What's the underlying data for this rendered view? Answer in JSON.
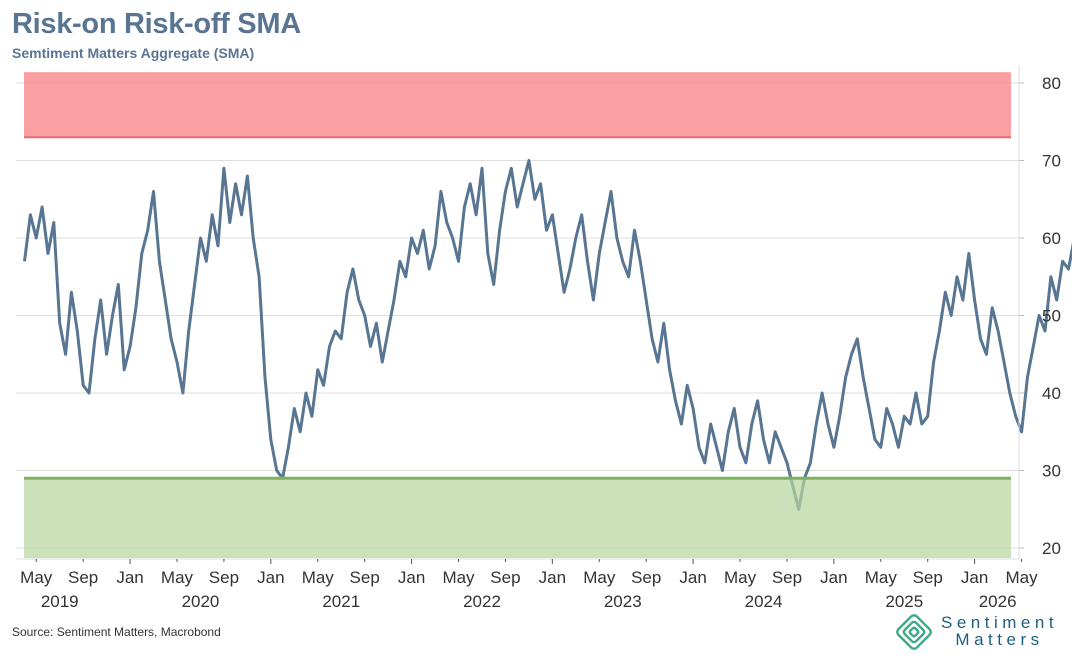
{
  "header": {
    "title": "Risk-on Risk-off SMA",
    "subtitle": "Semtiment Matters Aggregate (SMA)"
  },
  "footer": {
    "source": "Source: Sentiment Matters, Macrobond",
    "logo_line1": "Sentiment",
    "logo_line2": "Matters",
    "logo_icon": "nested-diamond-icon"
  },
  "colors": {
    "line": "#587592",
    "risk_on_zone": "#f98b8e",
    "risk_on_line": "#ee6a6e",
    "risk_off_zone": "#b5d6a0",
    "risk_off_line": "#7fb25e",
    "grid": "#dddddd",
    "logo": "#3aa882"
  },
  "chart_data": {
    "type": "line",
    "title": "Risk-on Risk-off SMA",
    "subtitle": "Semtiment Matters Aggregate (SMA)",
    "xlabel": "",
    "ylabel": "",
    "ylim": [
      19,
      82
    ],
    "yaxis_position": "right",
    "yticks": [
      20,
      30,
      40,
      50,
      60,
      70,
      80
    ],
    "grid": true,
    "legend": "none",
    "x_range": [
      "2019-04",
      "2026-05"
    ],
    "x_ticks": [
      {
        "month": "May",
        "year": "2019",
        "t": 1
      },
      {
        "month": "Sep",
        "year": "",
        "t": 5
      },
      {
        "month": "Jan",
        "year": "",
        "t": 9
      },
      {
        "month": "May",
        "year": "2020",
        "t": 13
      },
      {
        "month": "Sep",
        "year": "",
        "t": 17
      },
      {
        "month": "Jan",
        "year": "",
        "t": 21
      },
      {
        "month": "May",
        "year": "2021",
        "t": 25
      },
      {
        "month": "Sep",
        "year": "",
        "t": 29
      },
      {
        "month": "Jan",
        "year": "",
        "t": 33
      },
      {
        "month": "May",
        "year": "2022",
        "t": 37
      },
      {
        "month": "Sep",
        "year": "",
        "t": 41
      },
      {
        "month": "Jan",
        "year": "",
        "t": 45
      },
      {
        "month": "May",
        "year": "2023",
        "t": 49
      },
      {
        "month": "Sep",
        "year": "",
        "t": 53
      },
      {
        "month": "Jan",
        "year": "",
        "t": 57
      },
      {
        "month": "May",
        "year": "2024",
        "t": 61
      },
      {
        "month": "Sep",
        "year": "",
        "t": 65
      },
      {
        "month": "Jan",
        "year": "",
        "t": 69
      },
      {
        "month": "May",
        "year": "2025",
        "t": 73
      },
      {
        "month": "Sep",
        "year": "",
        "t": 77
      },
      {
        "month": "Jan",
        "year": "2026",
        "t": 81
      },
      {
        "month": "May",
        "year": "",
        "t": 85
      }
    ],
    "zones": [
      {
        "name": "Risk-on (euphoria) zone",
        "from": 73,
        "to": 81.4,
        "line": 73
      },
      {
        "name": "Risk-off (panic) zone",
        "from": 19,
        "to": 29,
        "line": 29
      }
    ],
    "series": [
      {
        "name": "SMA",
        "start_month_index": 0,
        "step_months": 0.5,
        "values": [
          57,
          63,
          60,
          64,
          58,
          62,
          49,
          45,
          53,
          48,
          41,
          40,
          47,
          52,
          45,
          50,
          54,
          43,
          46,
          51,
          58,
          61,
          66,
          57,
          52,
          47,
          44,
          40,
          48,
          54,
          60,
          57,
          63,
          59,
          69,
          62,
          67,
          63,
          68,
          60,
          55,
          42,
          34,
          30,
          29,
          33,
          38,
          35,
          40,
          37,
          43,
          41,
          46,
          48,
          47,
          53,
          56,
          52,
          50,
          46,
          49,
          44,
          48,
          52,
          57,
          55,
          60,
          58,
          61,
          56,
          59,
          66,
          62,
          60,
          57,
          64,
          67,
          63,
          69,
          58,
          54,
          61,
          66,
          69,
          64,
          67,
          70,
          65,
          67,
          61,
          63,
          58,
          53,
          56,
          60,
          63,
          57,
          52,
          58,
          62,
          66,
          60,
          57,
          55,
          61,
          57,
          52,
          47,
          44,
          49,
          43,
          39,
          36,
          41,
          38,
          33,
          31,
          36,
          33,
          30,
          35,
          38,
          33,
          31,
          36,
          39,
          34,
          31,
          35,
          33,
          31,
          28,
          25,
          29,
          31,
          36,
          40,
          36,
          33,
          37,
          42,
          45,
          47,
          42,
          38,
          34,
          33,
          38,
          36,
          33,
          37,
          36,
          40,
          36,
          37,
          44,
          48,
          53,
          50,
          55,
          52,
          58,
          52,
          47,
          45,
          51,
          48,
          44,
          40,
          37,
          35,
          42,
          46,
          50,
          48,
          55,
          52,
          57,
          56,
          60,
          58,
          62,
          56,
          64,
          59,
          62,
          57,
          53,
          58,
          61,
          65,
          62,
          57,
          64,
          60,
          62,
          58,
          55,
          58,
          45,
          53,
          61,
          60,
          63,
          57,
          60,
          58,
          64,
          66,
          58,
          63,
          61,
          55,
          51,
          58,
          60,
          55,
          52,
          46,
          40,
          34,
          29,
          33,
          40,
          44,
          48,
          46,
          50,
          48,
          47,
          51,
          58,
          56,
          60,
          62,
          58,
          61,
          60,
          63,
          57,
          62,
          60,
          59,
          64,
          63,
          56,
          61,
          60,
          63,
          66,
          62,
          60,
          55,
          57,
          51,
          48,
          50,
          47
        ]
      }
    ]
  }
}
